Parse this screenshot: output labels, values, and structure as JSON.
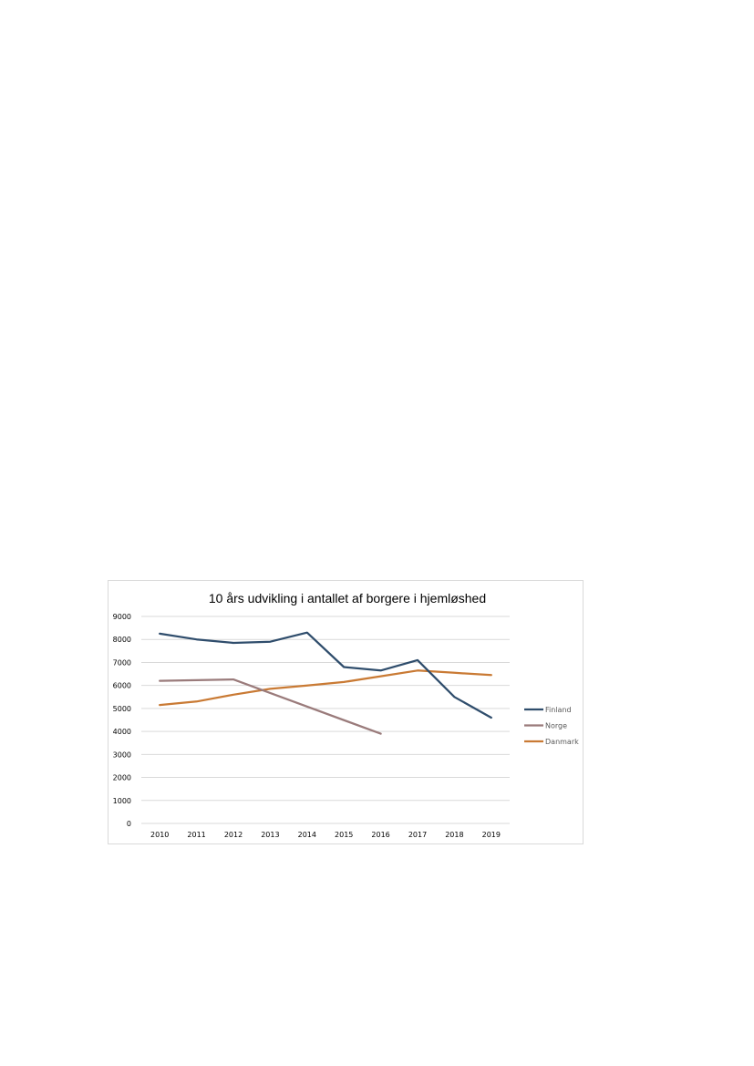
{
  "chart_data": {
    "type": "line",
    "title": "10 års udvikling  i antallet af borgere i hjemløshed",
    "xlabel": "",
    "ylabel": "",
    "categories": [
      "2010",
      "2011",
      "2012",
      "2013",
      "2014",
      "2015",
      "2016",
      "2017",
      "2018",
      "2019"
    ],
    "ylim": [
      0,
      9000
    ],
    "yticks": [
      0,
      1000,
      2000,
      3000,
      4000,
      5000,
      6000,
      7000,
      8000,
      9000
    ],
    "grid": true,
    "legend_position": "right",
    "series": [
      {
        "name": "Finland",
        "color": "#2f4d6c",
        "values": [
          8250,
          8000,
          7850,
          7900,
          8300,
          6800,
          6650,
          7100,
          5500,
          4600
        ]
      },
      {
        "name": "Norge",
        "color": "#9a7b7b",
        "values": [
          6200,
          6230,
          6260,
          null,
          null,
          null,
          3900,
          null,
          null,
          null
        ]
      },
      {
        "name": "Danmark",
        "color": "#c97a34",
        "values": [
          5150,
          5300,
          5600,
          5850,
          6000,
          6150,
          6400,
          6650,
          6550,
          6450
        ]
      }
    ]
  }
}
